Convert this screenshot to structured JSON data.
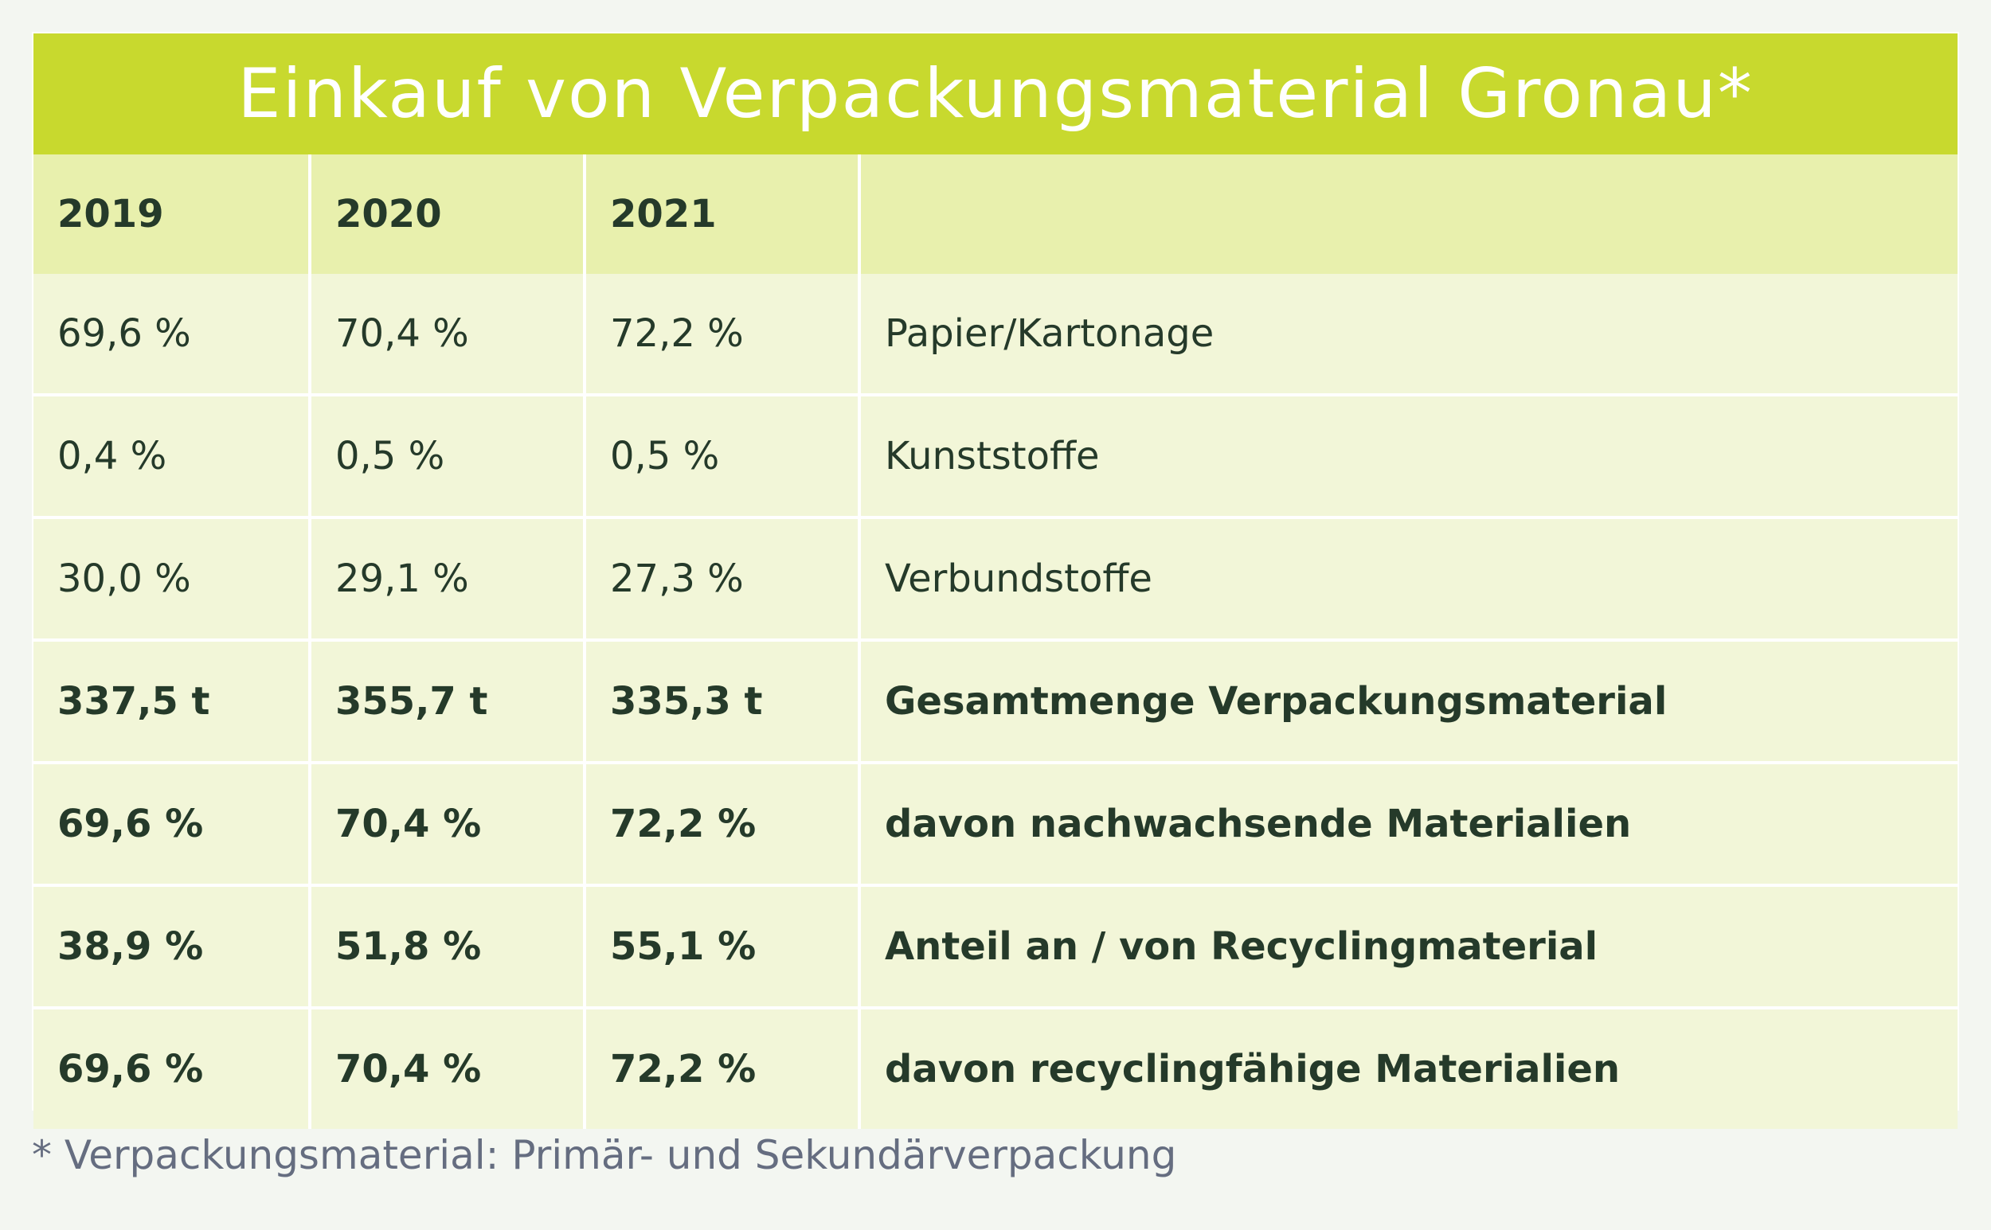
{
  "colors": {
    "title_bg": "#c8d92e",
    "header_bg": "#e8f0ad",
    "row_bg": "#f2f6d8",
    "text": "#253a2a",
    "footnote_text": "#656d80"
  },
  "chart_data": {
    "type": "table",
    "title": "Einkauf von Verpackungsmaterial Gronau*",
    "columns": [
      "2019",
      "2020",
      "2021",
      ""
    ],
    "rows": [
      {
        "values": [
          "69,6 %",
          "70,4 %",
          "72,2 %"
        ],
        "label": "Papier/Kartonage",
        "bold": false
      },
      {
        "values": [
          "0,4 %",
          "0,5 %",
          "0,5 %"
        ],
        "label": "Kunststoffe",
        "bold": false
      },
      {
        "values": [
          "30,0 %",
          "29,1 %",
          "27,3 %"
        ],
        "label": "Verbundstoffe",
        "bold": false
      },
      {
        "values": [
          "337,5 t",
          "355,7 t",
          "335,3 t"
        ],
        "label": "Gesamtmenge Verpackungsmaterial",
        "bold": true
      },
      {
        "values": [
          "69,6 %",
          "70,4 %",
          "72,2 %"
        ],
        "label": "davon nachwachsende Materialien",
        "bold": true
      },
      {
        "values": [
          "38,9 %",
          "51,8 %",
          "55,1 %"
        ],
        "label": "Anteil an / von Recyclingmaterial",
        "bold": true
      },
      {
        "values": [
          "69,6 %",
          "70,4 %",
          "72,2 %"
        ],
        "label": "davon recyclingfähige Materialien",
        "bold": true
      }
    ],
    "footnote": "* Verpackungsmaterial: Primär- und Sekundärverpackung"
  }
}
